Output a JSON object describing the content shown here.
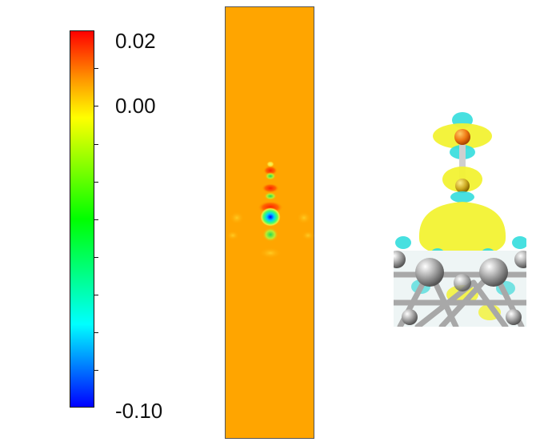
{
  "colorbar": {
    "max_label": "0.02",
    "zero_label": "0.00",
    "min_label": "-0.10",
    "stops": [
      "#0000ff",
      "#00ffff",
      "#00ff00",
      "#ffff00",
      "#ff9900",
      "#ff0000"
    ]
  },
  "slice": {
    "background_color": "#ffa500"
  },
  "render3d": {
    "positive_color": "#ffff33",
    "negative_color": "#33dddd",
    "atom_color": "#9a9a9a"
  }
}
